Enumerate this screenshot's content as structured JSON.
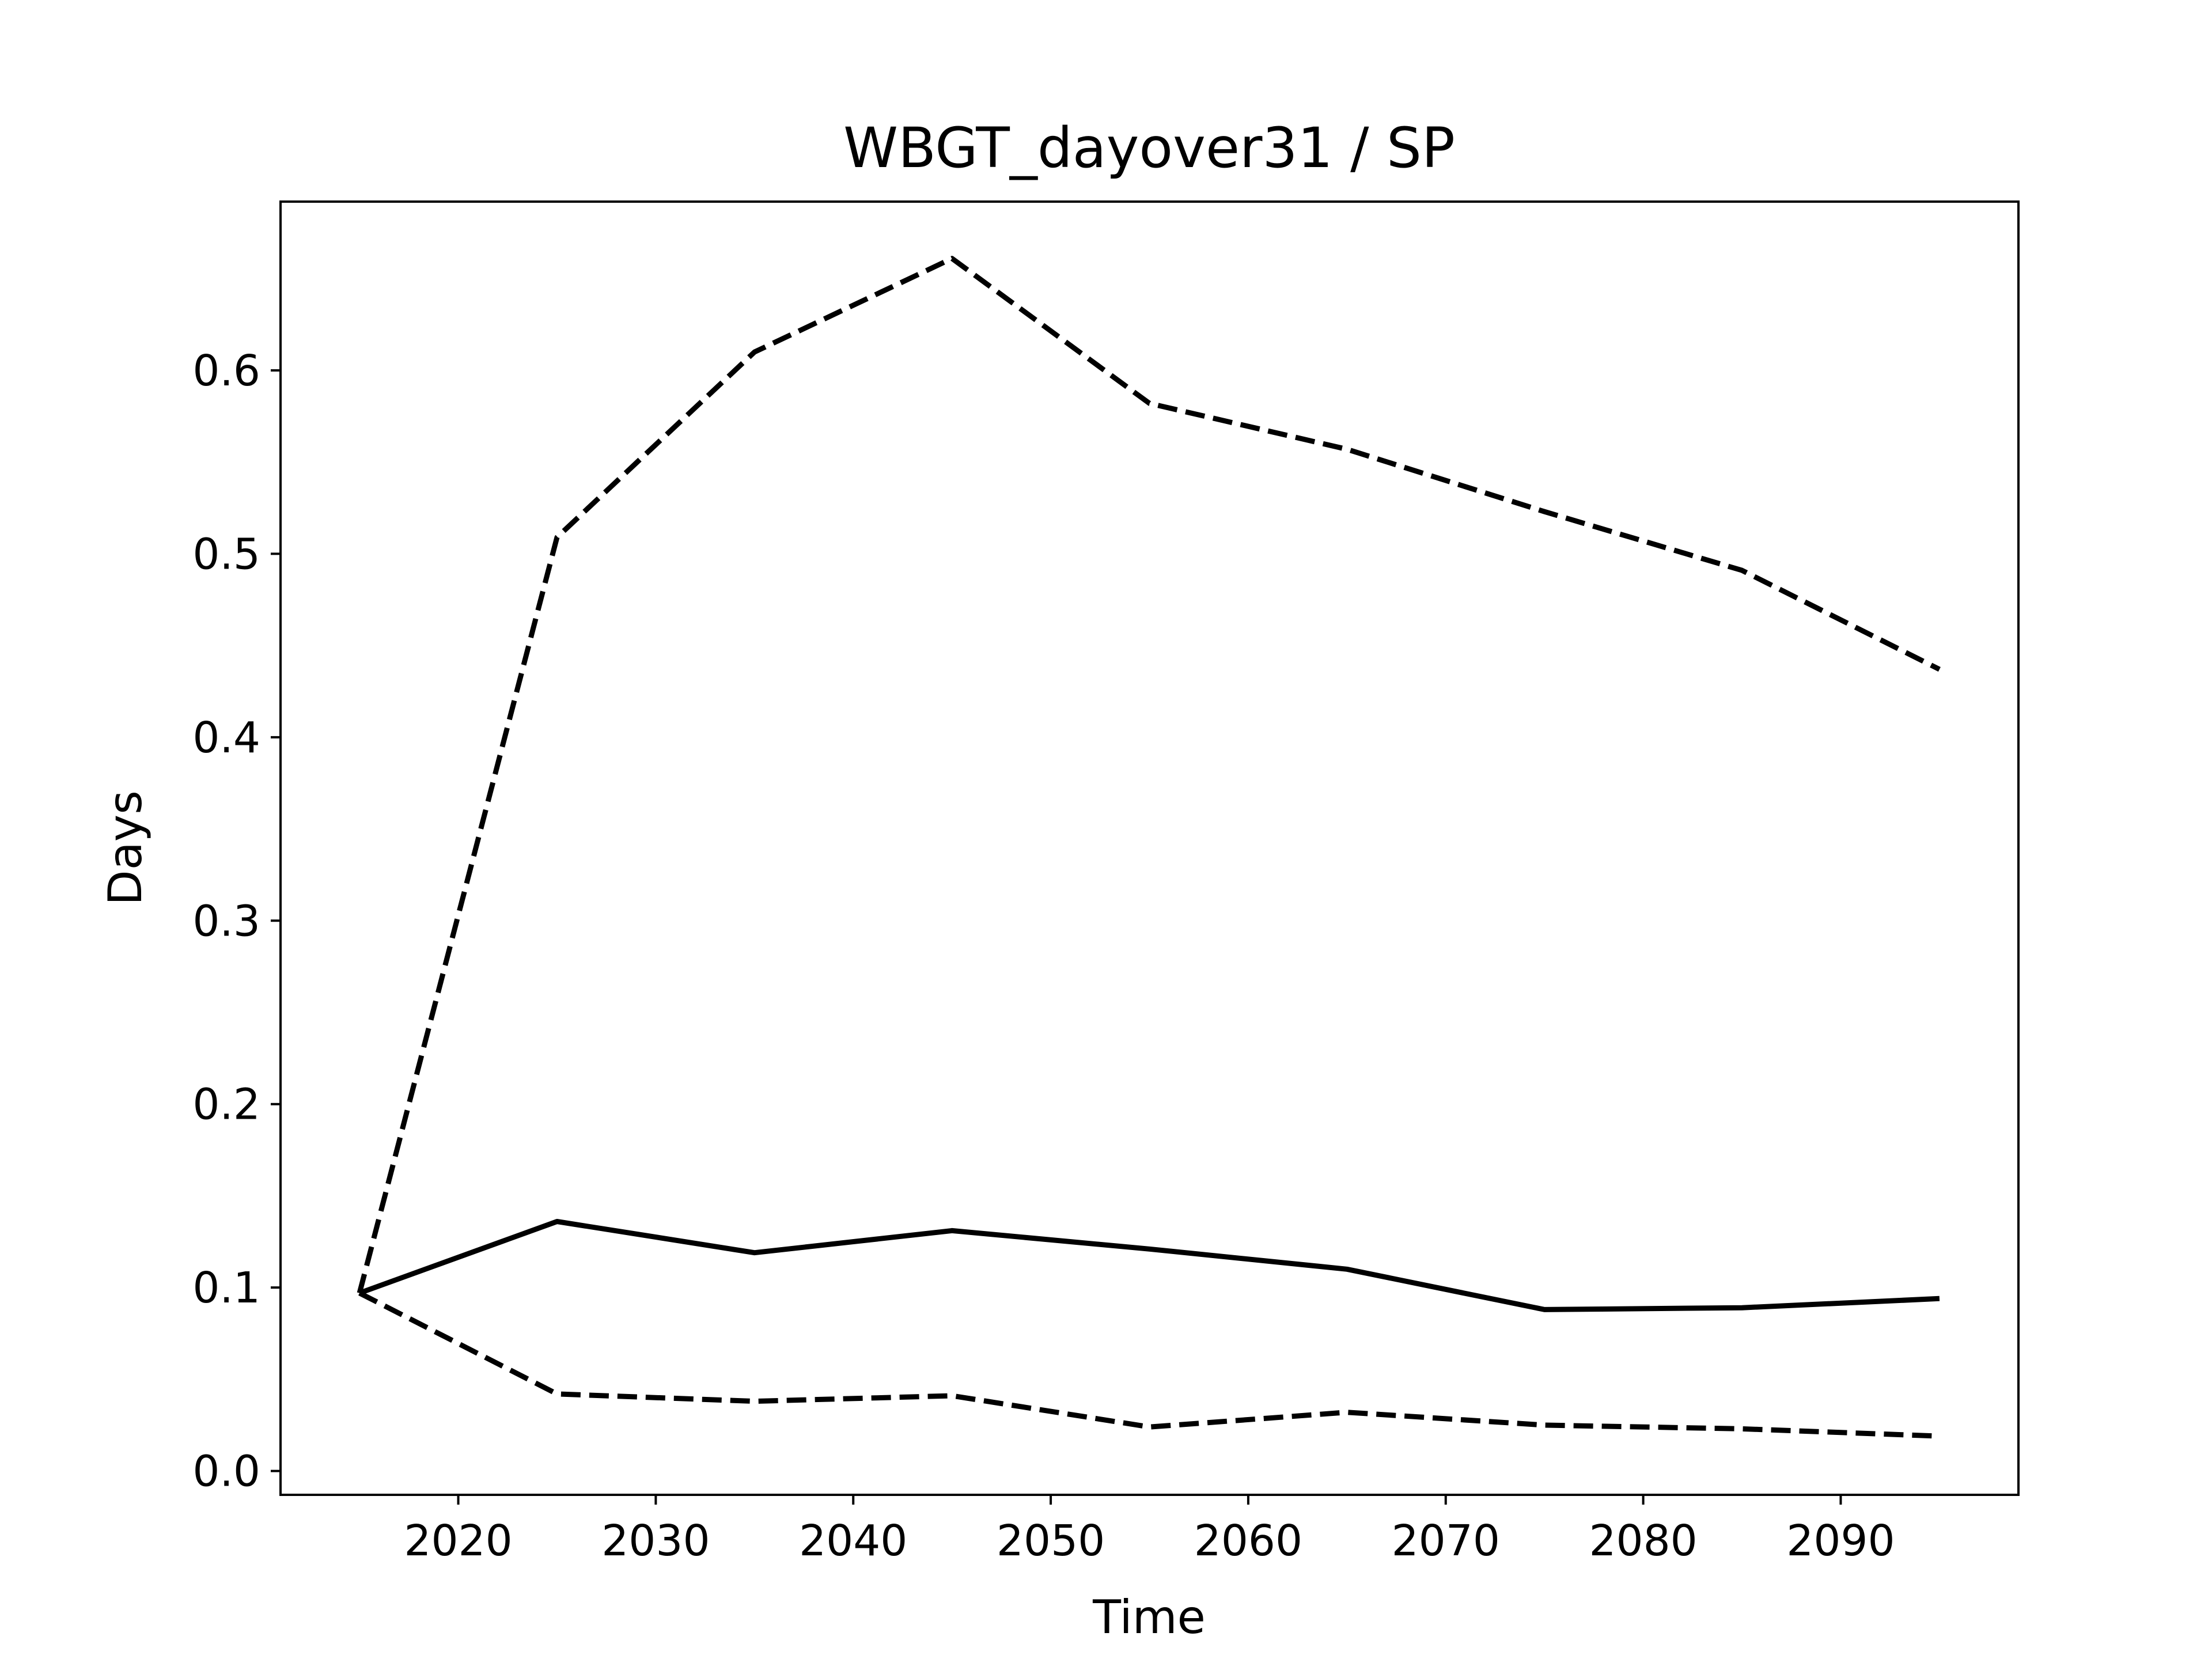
{
  "chart_data": {
    "type": "line",
    "title": "WBGT_dayover31 / SP",
    "xlabel": "Time",
    "ylabel": "Days",
    "xlim": [
      2011,
      2099
    ],
    "ylim": [
      -0.013,
      0.692
    ],
    "xticks": [
      2020,
      2030,
      2040,
      2050,
      2060,
      2070,
      2080,
      2090
    ],
    "yticks": [
      0.0,
      0.1,
      0.2,
      0.3,
      0.4,
      0.5,
      0.6
    ],
    "xtick_labels": [
      "2020",
      "2030",
      "2040",
      "2050",
      "2060",
      "2070",
      "2080",
      "2090"
    ],
    "ytick_labels": [
      "0.0",
      "0.1",
      "0.2",
      "0.3",
      "0.4",
      "0.5",
      "0.6"
    ],
    "grid": false,
    "x": [
      2015,
      2025,
      2035,
      2045,
      2055,
      2065,
      2075,
      2085,
      2095
    ],
    "series": [
      {
        "style": "dashed",
        "color": "#000000",
        "values": [
          0.097,
          0.509,
          0.61,
          0.661,
          0.582,
          0.557,
          0.523,
          0.491,
          0.437
        ]
      },
      {
        "style": "solid",
        "color": "#000000",
        "values": [
          0.097,
          0.136,
          0.119,
          0.131,
          0.121,
          0.11,
          0.088,
          0.089,
          0.094
        ]
      },
      {
        "style": "dashed",
        "color": "#000000",
        "values": [
          0.097,
          0.042,
          0.038,
          0.041,
          0.024,
          0.032,
          0.025,
          0.023,
          0.019
        ]
      }
    ]
  }
}
